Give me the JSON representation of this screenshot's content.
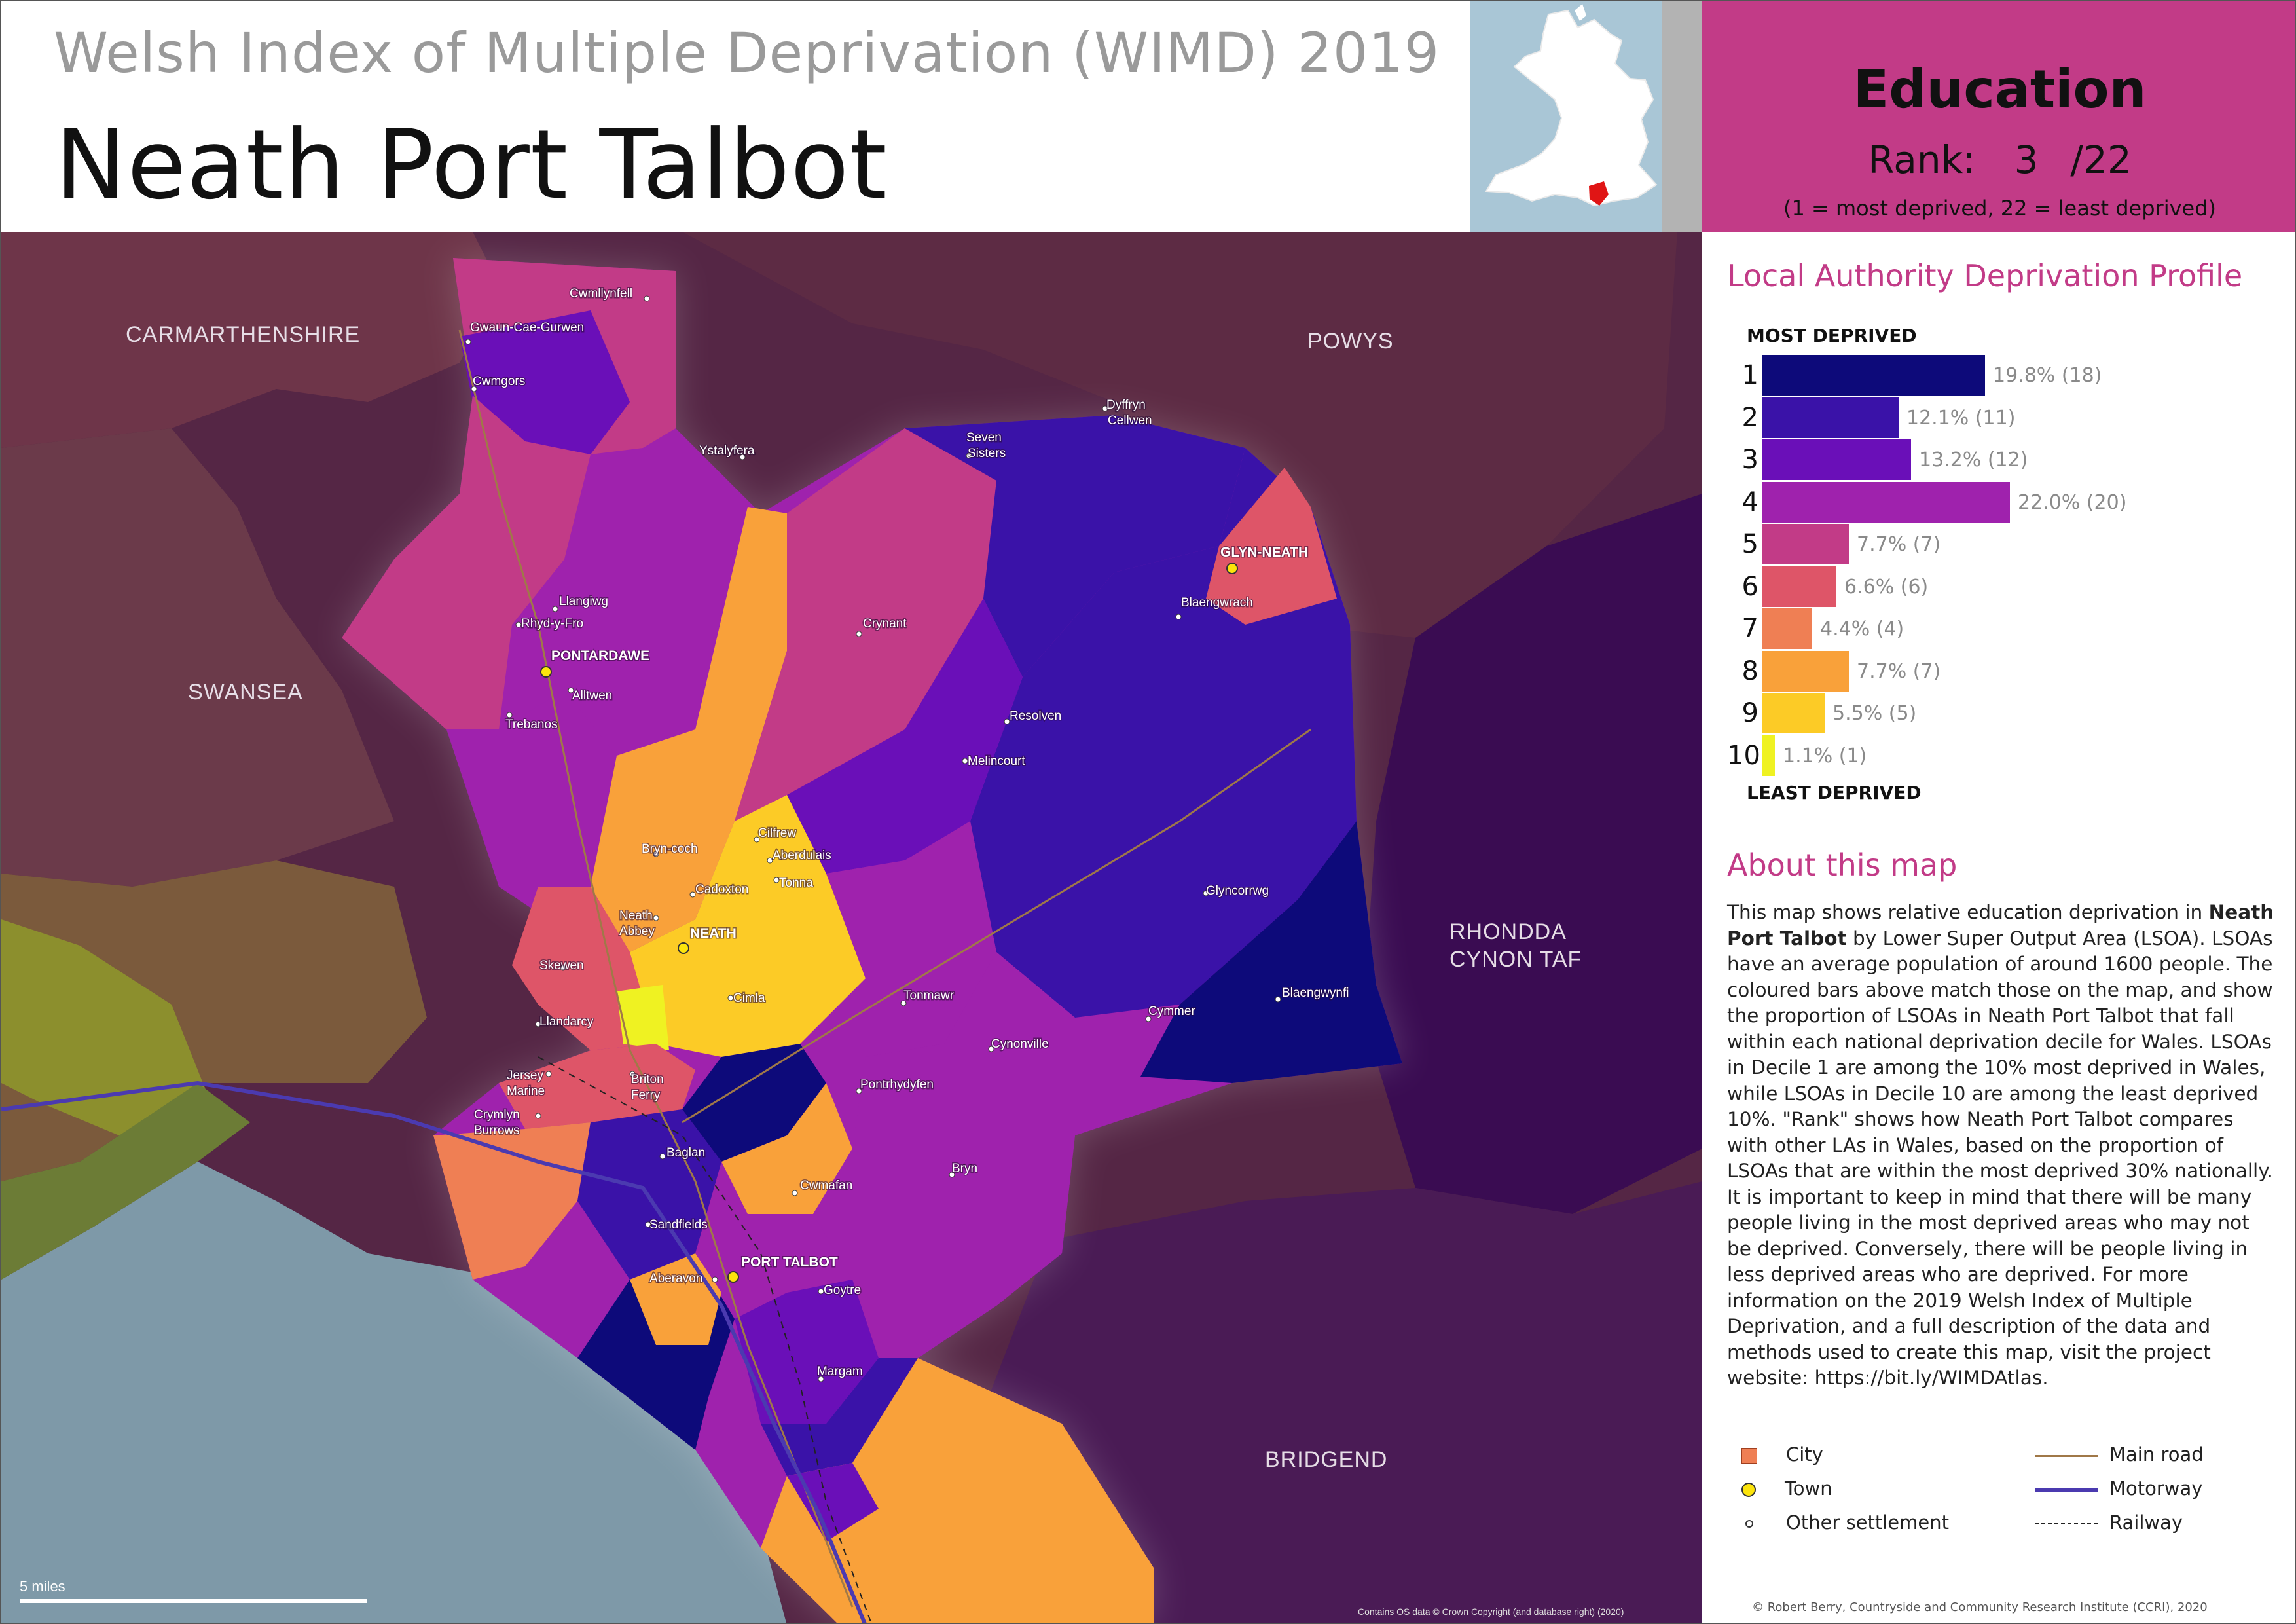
{
  "header": {
    "subtitle": "Welsh Index of Multiple Deprivation (WIMD) 2019",
    "title": "Neath Port Talbot"
  },
  "topic": {
    "name": "Education",
    "rank_label": "Rank:",
    "rank_value": "3",
    "rank_total": "/22",
    "note": "(1 =   most deprived, 22 = least deprived)"
  },
  "colors": {
    "decile_1": "#0d0a7a",
    "decile_2": "#3a12a8",
    "decile_3": "#6a0fb8",
    "decile_4": "#9f22ad",
    "decile_5": "#c23b87",
    "decile_6": "#de5568",
    "decile_7": "#ef7f54",
    "decile_8": "#f9a13a",
    "decile_9": "#fccb26",
    "decile_10": "#eff222",
    "accent": "#c23b87",
    "sea": "#7e99a8",
    "surround": "#5b2a48"
  },
  "profile": {
    "title": "Local Authority Deprivation Profile",
    "most_label": "MOST DEPRIVED",
    "least_label": "LEAST DEPRIVED"
  },
  "chart_data": {
    "type": "bar",
    "title": "Local Authority Deprivation Profile",
    "categories": [
      "1",
      "2",
      "3",
      "4",
      "5",
      "6",
      "7",
      "8",
      "9",
      "10"
    ],
    "values": [
      19.8,
      12.1,
      13.2,
      22.0,
      7.7,
      6.6,
      4.4,
      7.7,
      5.5,
      1.1
    ],
    "counts": [
      18,
      11,
      12,
      20,
      7,
      6,
      4,
      7,
      5,
      1
    ],
    "labels": [
      "19.8% (18)",
      "12.1% (11)",
      "13.2% (12)",
      "22.0% (20)",
      "7.7% (7)",
      "6.6% (6)",
      "4.4% (4)",
      "7.7% (7)",
      "5.5% (5)",
      "1.1% (1)"
    ],
    "orientation": "horizontal"
  },
  "about": {
    "title": "About this map",
    "text_pre": "This map shows relative education deprivation in ",
    "text_bold": "Neath Port Talbot",
    "text_post": " by Lower Super Output Area (LSOA). LSOAs have an average population of around 1600 people. The coloured bars above match those on the map, and show the proportion of LSOAs in Neath Port Talbot that fall within each national deprivation decile for Wales. LSOAs in Decile 1 are among the 10% most deprived in Wales, while LSOAs in Decile 10 are among the least deprived 10%. \"Rank\" shows how Neath Port Talbot compares with other LAs in Wales, based on the proportion of LSOAs that are within the most deprived 30% nationally. It is important to keep in mind that there will be many people living in the most deprived areas who may not be deprived. Conversely, there will be people living in less deprived areas who are deprived. For more information on the 2019 Welsh Index of Multiple Deprivation, and a full description of the data and methods used to create this map, visit the project website: https://bit.ly/WIMDAtlas."
  },
  "legend": {
    "city": "City",
    "town": "Town",
    "other": "Other settlement",
    "main_road": "Main road",
    "motorway": "Motorway",
    "railway": "Railway"
  },
  "copyright": "© Robert Berry, Countryside and Community Research Institute (CCRI), 2020",
  "map": {
    "regions": {
      "carmarthenshire": "CARMARTHENSHIRE",
      "powys": "POWYS",
      "swansea": "SWANSEA",
      "rhondda_1": "RHONDDA",
      "rhondda_2": "CYNON TAF",
      "bridgend": "BRIDGEND"
    },
    "places": {
      "cwmllynfell": "Cwmllynfell",
      "gwaun": "Gwaun-Cae-Gurwen",
      "cwmgors": "Cwmgors",
      "ystalyfera": "Ystalyfera",
      "dyffryn_1": "Dyffryn",
      "dyffryn_2": "Cellwen",
      "seven_1": "Seven",
      "seven_2": "Sisters",
      "glynneath": "GLYN-NEATH",
      "blaengwrach": "Blaengwrach",
      "llangiwg": "Llangiwg",
      "rhydyfro": "Rhyd-y-Fro",
      "pontardawe": "PONTARDAWE",
      "alltwen": "Alltwen",
      "trebanos": "Trebanos",
      "crynant": "Crynant",
      "resolven": "Resolven",
      "melincourt": "Melincourt",
      "cilfrew": "Cilfrew",
      "aberdulais": "Aberdulais",
      "tonna": "Tonna",
      "bryncoch": "Bryn-coch",
      "cadoxton": "Cadoxton",
      "neath_abbey_1": "Neath",
      "neath_abbey_2": "Abbey",
      "neath": "NEATH",
      "glyncorrwg": "Glyncorrwg",
      "skewen": "Skewen",
      "cimla": "Cimla",
      "tonmawr": "Tonmawr",
      "blaengwynfi": "Blaengwynfi",
      "cymmer": "Cymmer",
      "llandarcy": "Llandarcy",
      "cynonville": "Cynonville",
      "jersey_1": "Jersey",
      "jersey_2": "Marine",
      "briton_1": "Briton",
      "briton_2": "Ferry",
      "pontrhydyfen": "Pontrhydyfen",
      "crymlyn_1": "Crymlyn",
      "crymlyn_2": "Burrows",
      "baglan": "Baglan",
      "cwmafan": "Cwmafan",
      "bryn": "Bryn",
      "sandfields": "Sandfields",
      "port_talbot": "PORT TALBOT",
      "aberavon": "Aberavon",
      "goytre": "Goytre",
      "margam": "Margam"
    },
    "scale_label": "5 miles",
    "credit": "Contains OS data © Crown Copyright (and database right) (2020)"
  }
}
